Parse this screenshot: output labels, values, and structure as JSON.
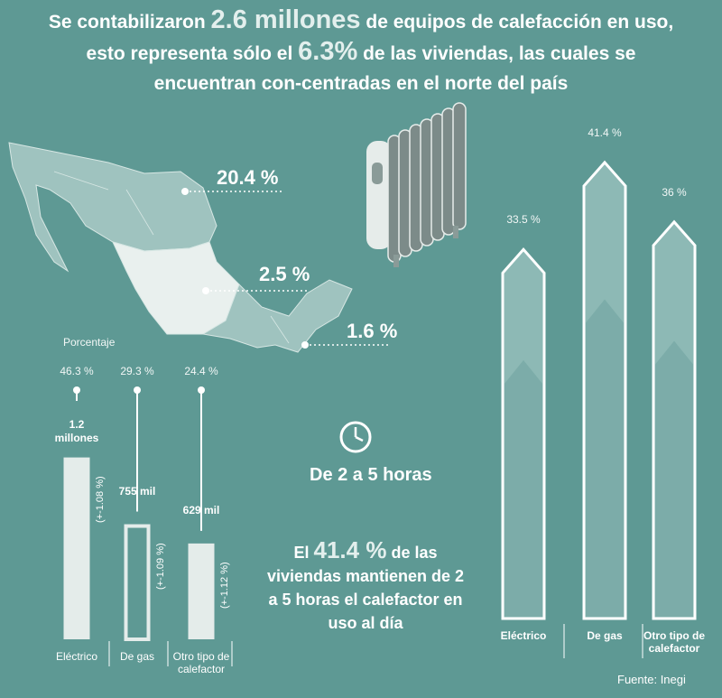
{
  "headline": {
    "part1": "Se contabilizaron ",
    "big1": "2.6 millones",
    "part2": " de equipos de calefacción en uso, esto representa sólo el ",
    "big2": "6.3%",
    "part3": " de las viviendas, las cuales se encuentran con-centradas en el norte del país"
  },
  "map": {
    "regions": [
      {
        "label": "20.4 %"
      },
      {
        "label": "2.5 %"
      },
      {
        "label": "1.6 %"
      }
    ]
  },
  "left_chart_title": "Porcentaje",
  "chart_data": [
    {
      "type": "bar",
      "categories": [
        "Eléctrico",
        "De gas",
        "Otro tipo de calefactor"
      ],
      "values": [
        46.3,
        29.3,
        24.4
      ],
      "percent_labels": [
        "46.3 %",
        "29.3 %",
        "24.4 %"
      ],
      "count_labels": [
        "1.2 millones",
        "755 mil",
        "629 mil"
      ],
      "range_labels": [
        "(+-1.08 %)",
        "(+-1.09 %)",
        "(+-1.12 %)"
      ],
      "ylabel": "Porcentaje"
    },
    {
      "type": "bar",
      "categories": [
        "Eléctrico",
        "De gas",
        "Otro tipo de calefactor"
      ],
      "values": [
        33.5,
        41.4,
        36
      ],
      "value_labels": [
        "33.5 %",
        "41.4 %",
        "36 %"
      ]
    }
  ],
  "hours_label": "De 2 a 5 horas",
  "summary": {
    "prefix": "El ",
    "big": "41.4 %",
    "suffix": " de las viviendas mantienen de 2 a 5 horas el calefactor en uso al día"
  },
  "source": "Fuente: Inegi",
  "colors": {
    "background": "#5e9994",
    "bar_fill": "#e4ecea",
    "arrow_dark": "#6fa39e"
  }
}
